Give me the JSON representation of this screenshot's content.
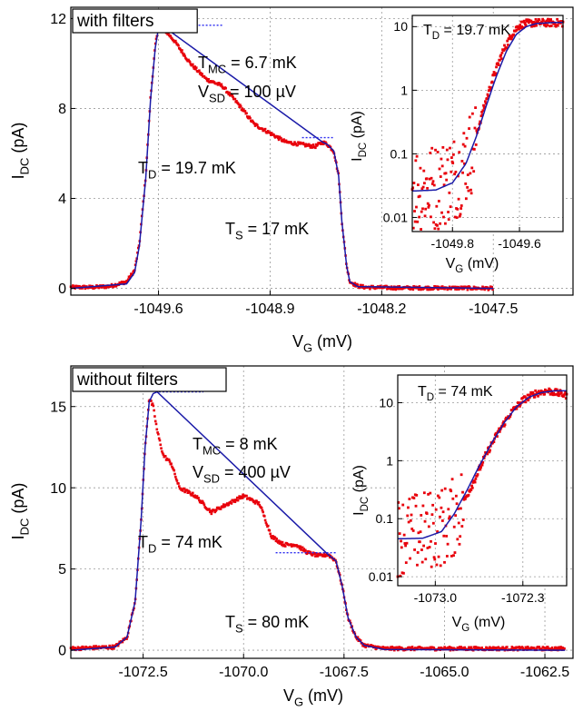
{
  "chart_data": [
    {
      "type": "line",
      "panel": "top",
      "label_box": "with filters",
      "xlabel": "V",
      "xlabel_sub": "G",
      "xlabel_unit": "(mV)",
      "ylabel": "I",
      "ylabel_sub": "DC",
      "ylabel_unit": "(pA)",
      "xlim": [
        -1050.15,
        -1047.0
      ],
      "ylim": [
        -0.3,
        12.5
      ],
      "xticks": [
        -1049.6,
        -1048.9,
        -1048.2,
        -1047.5
      ],
      "xtick_labels": [
        "-1049.6",
        "-1048.9",
        "-1048.2",
        "-1047.5"
      ],
      "yticks": [
        0,
        4,
        8,
        12
      ],
      "ytick_labels": [
        "0",
        "4",
        "8",
        "12"
      ],
      "grid": true,
      "annotations": [
        {
          "main": "T",
          "sub": "MC",
          "rest": " = 6.7 mK"
        },
        {
          "main": "V",
          "sub": "SD",
          "rest": " = 100 µV"
        },
        {
          "main": "T",
          "sub": "D",
          "rest": " = 19.7 mK"
        },
        {
          "main": "T",
          "sub": "S",
          "rest": " = 17 mK"
        }
      ],
      "series": [
        {
          "color": "#e8000b",
          "style": "markers",
          "x": [
            -1050.15,
            -1050.0,
            -1049.9,
            -1049.8,
            -1049.75,
            -1049.72,
            -1049.68,
            -1049.65,
            -1049.62,
            -1049.6,
            -1049.58,
            -1049.55,
            -1049.5,
            -1049.4,
            -1049.3,
            -1049.2,
            -1049.1,
            -1049.0,
            -1048.9,
            -1048.8,
            -1048.7,
            -1048.62,
            -1048.57,
            -1048.54,
            -1048.5,
            -1048.47,
            -1048.45,
            -1048.42,
            -1048.4,
            -1048.35,
            -1048.3,
            -1048.1,
            -1047.8,
            -1047.5
          ],
          "y": [
            0.05,
            0.05,
            0.1,
            0.3,
            0.8,
            2.0,
            5.0,
            8.5,
            10.8,
            11.6,
            11.7,
            11.4,
            11.0,
            10.0,
            9.3,
            9.0,
            8.2,
            7.3,
            6.9,
            6.5,
            6.4,
            6.3,
            6.5,
            6.4,
            6.1,
            5.0,
            3.0,
            1.0,
            0.3,
            0.1,
            0.05,
            0.02,
            0.02,
            0.0
          ]
        },
        {
          "color": "#1a1aa8",
          "style": "line",
          "x": [
            -1050.15,
            -1049.8,
            -1049.75,
            -1049.72,
            -1049.68,
            -1049.65,
            -1049.62,
            -1049.6,
            -1049.58,
            -1048.57,
            -1048.54,
            -1048.5,
            -1048.47,
            -1048.45,
            -1048.42,
            -1048.4,
            -1048.35,
            -1047.5
          ],
          "y": [
            0.0,
            0.2,
            0.7,
            1.9,
            4.9,
            8.4,
            10.7,
            11.6,
            11.7,
            6.5,
            6.4,
            6.1,
            5.0,
            3.0,
            1.0,
            0.3,
            0.08,
            0.0
          ]
        },
        {
          "color": "#2a2af0",
          "style": "dotted",
          "x": [
            -1049.6,
            -1049.2
          ],
          "y": [
            11.7,
            11.7
          ]
        },
        {
          "color": "#2a2af0",
          "style": "dotted",
          "x": [
            -1048.7,
            -1048.5
          ],
          "y": [
            6.7,
            6.7
          ]
        }
      ]
    },
    {
      "type": "scatter",
      "panel": "top-inset",
      "xlabel": "V",
      "xlabel_sub": "G",
      "xlabel_unit": "(mV)",
      "ylabel": "I",
      "ylabel_sub": "DC",
      "ylabel_unit": "(pA)",
      "log_y": true,
      "xlim": [
        -1049.92,
        -1049.47
      ],
      "ylim": [
        0.006,
        15
      ],
      "xticks": [
        -1049.8,
        -1049.6
      ],
      "xtick_labels": [
        "-1049.8",
        "-1049.6"
      ],
      "yticks": [
        0.01,
        0.1,
        1,
        10
      ],
      "ytick_labels": [
        "0.01",
        "0.1",
        "1",
        "10"
      ],
      "grid": true,
      "annotations": [
        {
          "main": "T",
          "sub": "D",
          "rest": " = 19.7 mK"
        }
      ],
      "series": [
        {
          "color": "#e8000b",
          "style": "noisy",
          "x": [
            -1049.92,
            -1049.85,
            -1049.78,
            -1049.74,
            -1049.71,
            -1049.68,
            -1049.65,
            -1049.62,
            -1049.6,
            -1049.58,
            -1049.55,
            -1049.52,
            -1049.47
          ],
          "y": [
            0.03,
            0.03,
            0.05,
            0.12,
            0.45,
            1.5,
            4.0,
            8.0,
            10.5,
            11.2,
            11.5,
            11.5,
            11.4
          ]
        },
        {
          "color": "#1a1aa8",
          "style": "line",
          "x": [
            -1049.92,
            -1049.85,
            -1049.8,
            -1049.76,
            -1049.73,
            -1049.7,
            -1049.67,
            -1049.64,
            -1049.61,
            -1049.58,
            -1049.55,
            -1049.5,
            -1049.47
          ],
          "y": [
            0.026,
            0.027,
            0.035,
            0.07,
            0.18,
            0.55,
            1.6,
            4.0,
            7.5,
            10.0,
            11.2,
            11.6,
            11.6
          ]
        }
      ]
    },
    {
      "type": "line",
      "panel": "bottom",
      "label_box": "without filters",
      "xlabel": "V",
      "xlabel_sub": "G",
      "xlabel_unit": "(mV)",
      "ylabel": "I",
      "ylabel_sub": "DC",
      "ylabel_unit": "(pA)",
      "xlim": [
        -1074.3,
        -1061.8
      ],
      "ylim": [
        -0.5,
        17.5
      ],
      "xticks": [
        -1072.5,
        -1070.0,
        -1067.5,
        -1065.0,
        -1062.5
      ],
      "xtick_labels": [
        "-1072.5",
        "-1070.0",
        "-1067.5",
        "-1065.0",
        "-1062.5"
      ],
      "yticks": [
        0,
        5,
        10,
        15
      ],
      "ytick_labels": [
        "0",
        "5",
        "10",
        "15"
      ],
      "grid": true,
      "annotations": [
        {
          "main": "T",
          "sub": "MC",
          "rest": " = 8 mK"
        },
        {
          "main": "V",
          "sub": "SD",
          "rest": " = 400 µV"
        },
        {
          "main": "T",
          "sub": "D",
          "rest": " = 74 mK"
        },
        {
          "main": "T",
          "sub": "S",
          "rest": " = 80 mK"
        }
      ],
      "series": [
        {
          "color": "#e8000b",
          "style": "markers",
          "x": [
            -1074.3,
            -1073.2,
            -1072.9,
            -1072.7,
            -1072.55,
            -1072.45,
            -1072.35,
            -1072.25,
            -1072.15,
            -1072.0,
            -1071.8,
            -1071.6,
            -1071.2,
            -1070.8,
            -1070.4,
            -1070.0,
            -1069.6,
            -1069.3,
            -1069.0,
            -1068.7,
            -1068.4,
            -1068.1,
            -1067.9,
            -1067.7,
            -1067.55,
            -1067.4,
            -1067.2,
            -1067.0,
            -1066.5,
            -1065.0,
            -1062.0
          ],
          "y": [
            0.1,
            0.2,
            0.8,
            3.0,
            8.0,
            12.5,
            15.5,
            15.0,
            13.5,
            12.0,
            11.5,
            10.0,
            9.5,
            8.5,
            9.0,
            9.5,
            9.0,
            7.0,
            6.5,
            6.5,
            6.0,
            5.8,
            5.9,
            5.5,
            4.0,
            2.0,
            0.8,
            0.3,
            0.1,
            0.1,
            0.1
          ]
        },
        {
          "color": "#1a1aa8",
          "style": "line",
          "x": [
            -1074.3,
            -1073.2,
            -1072.9,
            -1072.7,
            -1072.55,
            -1072.45,
            -1072.35,
            -1072.25,
            -1072.15,
            -1067.9,
            -1067.7,
            -1067.55,
            -1067.4,
            -1067.2,
            -1067.0,
            -1066.5,
            -1062.0
          ],
          "y": [
            0.0,
            0.2,
            0.8,
            3.0,
            8.0,
            12.5,
            15.3,
            15.8,
            15.9,
            5.9,
            5.5,
            4.0,
            2.0,
            0.8,
            0.3,
            0.05,
            0.0
          ]
        },
        {
          "color": "#2a2af0",
          "style": "dotted",
          "x": [
            -1072.2,
            -1071.0
          ],
          "y": [
            15.9,
            15.9
          ]
        },
        {
          "color": "#2a2af0",
          "style": "dotted",
          "x": [
            -1069.2,
            -1067.7
          ],
          "y": [
            6.0,
            6.0
          ]
        }
      ]
    },
    {
      "type": "scatter",
      "panel": "bottom-inset",
      "xlabel": "V",
      "xlabel_sub": "G",
      "xlabel_unit": "(mV)",
      "ylabel": "I",
      "ylabel_sub": "DC",
      "ylabel_unit": "(pA)",
      "log_y": true,
      "xlim": [
        -1073.3,
        -1071.95
      ],
      "ylim": [
        0.007,
        30
      ],
      "xticks": [
        -1073.0,
        -1072.3
      ],
      "xtick_labels": [
        "-1073.0",
        "-1072.3"
      ],
      "yticks": [
        0.01,
        0.1,
        1,
        10
      ],
      "ytick_labels": [
        "0.01",
        "0.1",
        "1",
        "10"
      ],
      "grid": true,
      "annotations": [
        {
          "main": "T",
          "sub": "D",
          "rest": " = 74 mK"
        }
      ],
      "series": [
        {
          "color": "#e8000b",
          "style": "noisy",
          "x": [
            -1073.3,
            -1073.1,
            -1072.9,
            -1072.8,
            -1072.7,
            -1072.6,
            -1072.5,
            -1072.4,
            -1072.3,
            -1072.2,
            -1072.1,
            -1071.95
          ],
          "y": [
            0.05,
            0.06,
            0.08,
            0.15,
            0.4,
            1.2,
            3.0,
            6.5,
            11.0,
            14.5,
            16.0,
            13.5
          ]
        },
        {
          "color": "#1a1aa8",
          "style": "line",
          "x": [
            -1073.3,
            -1073.1,
            -1072.95,
            -1072.85,
            -1072.75,
            -1072.65,
            -1072.55,
            -1072.45,
            -1072.35,
            -1072.25,
            -1072.15,
            -1072.05,
            -1071.95
          ],
          "y": [
            0.045,
            0.046,
            0.06,
            0.12,
            0.3,
            0.8,
            2.0,
            4.5,
            8.5,
            12.5,
            15.0,
            16.0,
            16.0
          ]
        }
      ]
    }
  ]
}
